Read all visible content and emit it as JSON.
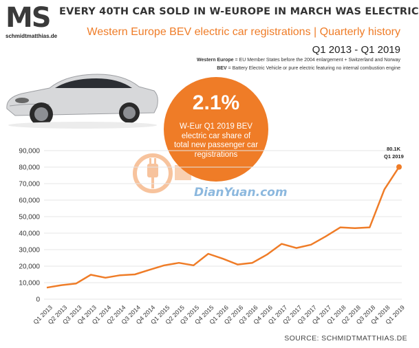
{
  "branding": {
    "logo": "MS",
    "site": "schmidtmatthias.de"
  },
  "header": {
    "title": "EVERY 40TH CAR SOLD IN W-EUROPE IN MARCH WAS ELECTRIC",
    "subtitle": "Western Europe BEV electric car registrations | Quarterly history",
    "period": "Q1 2013 - Q1 2019",
    "note1_term": "Western Europe",
    "note1_text": " = EU Member States before the 2004 enlargement + Switzerland and Norway",
    "note2_term": "BEV",
    "note2_text": " = Battery Electric Vehicle or pure electric featuring no internal combustion engine"
  },
  "callout": {
    "value": "2.1%",
    "text": "W-Eur Q1 2019 BEV electric car share of total new passenger car registrations"
  },
  "watermark": {
    "text": "DianYuan.com"
  },
  "source": "SOURCE: SCHMIDTMATTHIAS.DE",
  "colors": {
    "accent": "#ef7c27",
    "text": "#333333",
    "grid": "#e6e6e6"
  },
  "chart_data": {
    "type": "line",
    "categories": [
      "Q1 2013",
      "Q2 2013",
      "Q3 2013",
      "Q4 2013",
      "Q1 2014",
      "Q2 2014",
      "Q3 2014",
      "Q4 2014",
      "Q1 2015",
      "Q2 2015",
      "Q3 2015",
      "Q4 2015",
      "Q1 2016",
      "Q2 2016",
      "Q3 2016",
      "Q4 2016",
      "Q1 2017",
      "Q2 2017",
      "Q3 2017",
      "Q4 2017",
      "Q1 2018",
      "Q2 2018",
      "Q3 2018",
      "Q4 2018",
      "Q1 2019"
    ],
    "series": [
      {
        "values": [
          7000,
          8500,
          9500,
          14800,
          13000,
          14500,
          15000,
          17800,
          20500,
          22000,
          20500,
          27500,
          24500,
          21000,
          22000,
          27000,
          33500,
          31000,
          33000,
          38000,
          43500,
          43000,
          43500,
          66500,
          80100
        ]
      }
    ],
    "yticks": [
      "0",
      "10,000",
      "20,000",
      "30,000",
      "40,000",
      "50,000",
      "60,000",
      "70,000",
      "80,000",
      "90,000"
    ],
    "ylim": [
      0,
      90000
    ],
    "grid": true,
    "end_label": {
      "value": "80.1K",
      "category": "Q1 2019"
    }
  }
}
